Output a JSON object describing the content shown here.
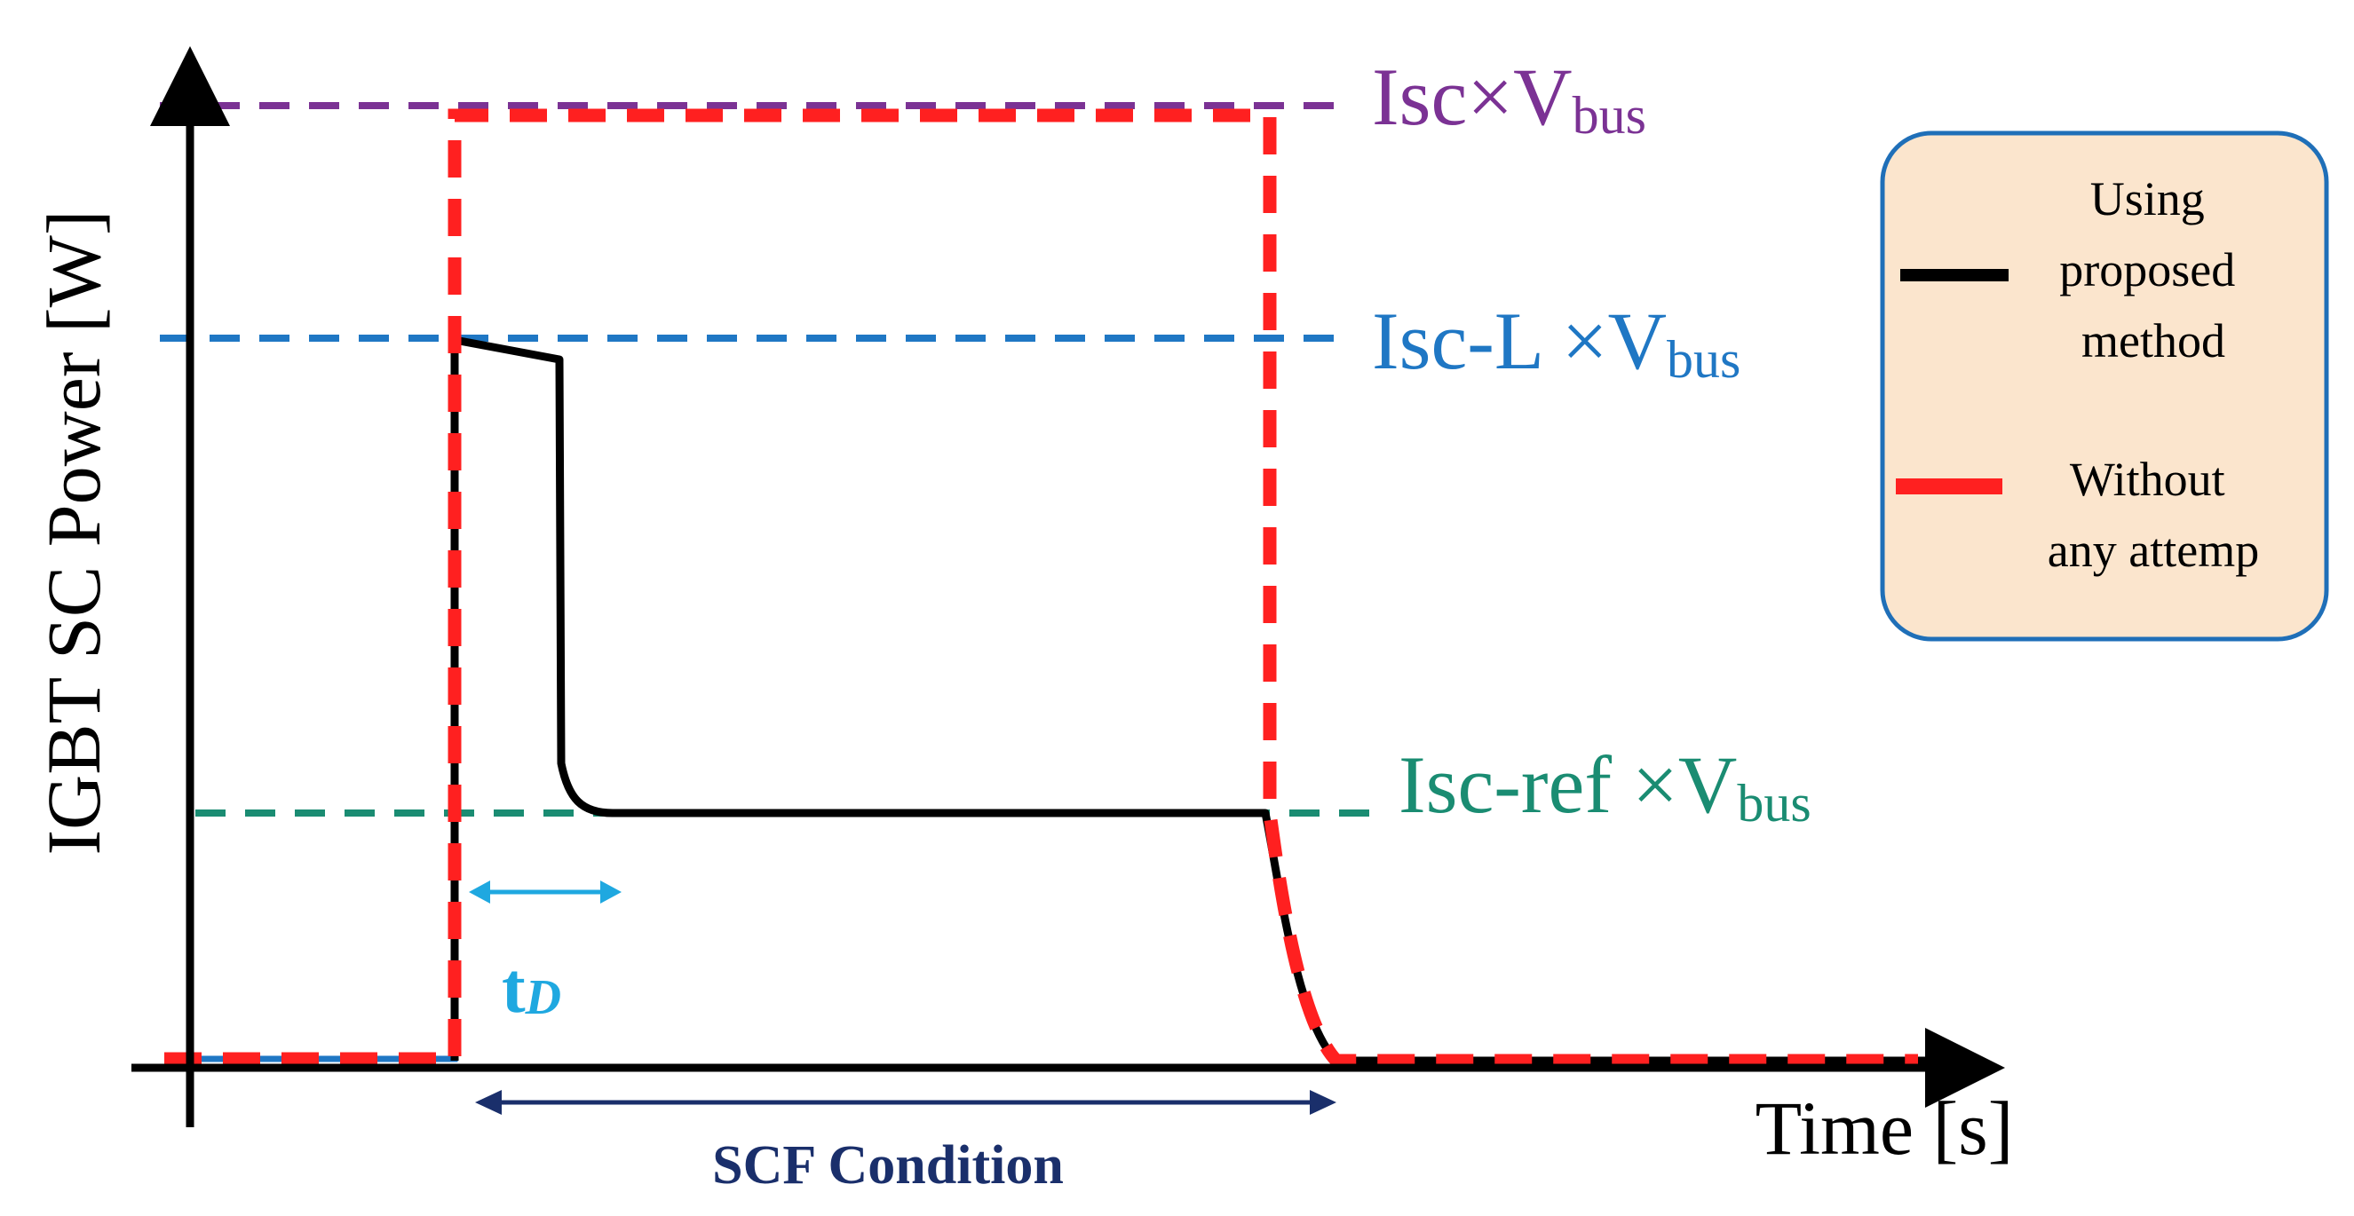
{
  "axes": {
    "y_label": "IGBT SC Power [W]",
    "x_label": "Time [s]"
  },
  "levels": [
    {
      "id": "isc",
      "main": "Isc×V",
      "sub": "bus",
      "color": "#7b3294"
    },
    {
      "id": "iscl",
      "main": "Isc-L ×V",
      "sub": "bus",
      "color": "#1f77c4"
    },
    {
      "id": "iscref",
      "main": "Isc-ref ×V",
      "sub": "bus",
      "color": "#1a8c72"
    }
  ],
  "annotations": {
    "td_main": "t",
    "td_sub": "D",
    "td_color": "#1fa8e0",
    "scf_label": "SCF Condition",
    "scf_color": "#1a2f6b"
  },
  "legend": {
    "background": "#fbe5cd",
    "border": "#1f6fb8",
    "items": [
      {
        "lines": [
          "Using",
          "proposed",
          "method"
        ],
        "style": "solid",
        "color": "#000000"
      },
      {
        "lines": [
          "Without",
          "any attemp"
        ],
        "style": "dashed",
        "color": "#ff2020"
      }
    ]
  },
  "series_colors": {
    "proposed": "#000000",
    "without": "#ff2020"
  }
}
